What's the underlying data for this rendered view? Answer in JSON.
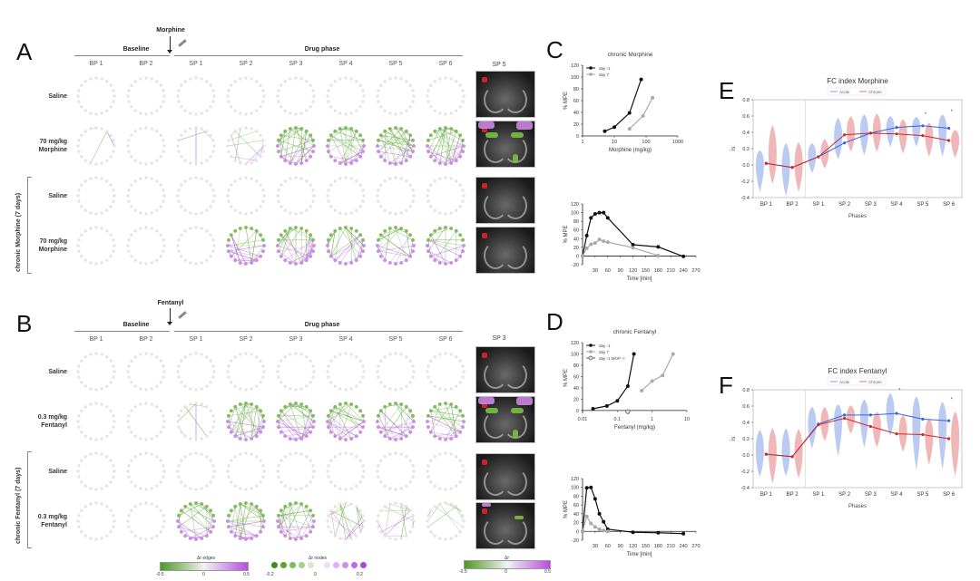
{
  "panels": {
    "A": {
      "letter": "A",
      "drug": "Morphine",
      "baseline_label": "Baseline",
      "drug_phase_label": "Drug phase",
      "columns": [
        "BP 1",
        "BP 2",
        "SP 1",
        "SP 2",
        "SP 3",
        "SP 4",
        "SP 5",
        "SP 6"
      ],
      "rows": [
        {
          "label_line1": "Saline",
          "label_line2": "",
          "intensity": [
            0,
            0,
            0,
            0,
            0,
            0,
            0,
            0
          ]
        },
        {
          "label_line1": "70 mg/kg",
          "label_line2": "Morphine",
          "intensity": [
            0.05,
            0,
            0.05,
            0.25,
            0.9,
            0.95,
            0.95,
            1.0
          ]
        },
        {
          "label_line1": "Saline",
          "label_line2": "",
          "intensity": [
            0,
            0,
            0,
            0,
            0,
            0,
            0,
            0
          ]
        },
        {
          "label_line1": "70 mg/kg",
          "label_line2": "Morphine",
          "intensity": [
            0,
            0,
            0,
            0.7,
            0.85,
            0.75,
            0.7,
            0.55
          ]
        }
      ],
      "group_label": "chronic Morphine (7 days)",
      "brain_title": "SP 5",
      "brain_overlays": [
        "none",
        "activation",
        "none",
        "none"
      ]
    },
    "B": {
      "letter": "B",
      "drug": "Fentanyl",
      "baseline_label": "Baseline",
      "drug_phase_label": "Drug phase",
      "columns": [
        "BP 1",
        "BP 2",
        "SP 1",
        "SP 2",
        "SP 3",
        "SP 4",
        "SP 5",
        "SP 6"
      ],
      "rows": [
        {
          "label_line1": "Saline",
          "label_line2": "",
          "intensity": [
            0,
            0,
            0,
            0,
            0,
            0,
            0,
            0
          ]
        },
        {
          "label_line1": "0.3 mg/kg",
          "label_line2": "Fentanyl",
          "intensity": [
            0,
            0,
            0.1,
            0.95,
            1.0,
            0.85,
            0.7,
            0.65
          ]
        },
        {
          "label_line1": "Saline",
          "label_line2": "",
          "intensity": [
            0,
            0,
            0,
            0,
            0,
            0,
            0,
            0
          ]
        },
        {
          "label_line1": "0.3 mg/kg",
          "label_line2": "Fentanyl",
          "intensity": [
            0,
            0,
            0.7,
            1.0,
            0.8,
            0.45,
            0.35,
            0.25
          ]
        }
      ],
      "group_label": "chronic Fentanyl (7 days)",
      "brain_title": "SP 3",
      "brain_overlays": [
        "none",
        "activation",
        "none",
        "small"
      ]
    }
  },
  "colorbars": {
    "edges": {
      "label": "Δr edges",
      "min": "-0.5",
      "mid": "0",
      "max": "0.5"
    },
    "nodes": {
      "label": "Δr nodes",
      "min": "-0.2",
      "mid": "0",
      "max": "0.2"
    },
    "brain": {
      "label": "Δr",
      "min": "-0.5",
      "mid": "0",
      "max": "0.5"
    },
    "green": "#4a9a20",
    "purple": "#b94be3"
  },
  "chart_data": [
    {
      "id": "C_top",
      "panel": "C",
      "type": "line",
      "title": "chronic Morphine",
      "xlabel": "Morphine (mg/kg)",
      "ylabel": "% MPE",
      "xscale": "log",
      "xlim": [
        1,
        1000
      ],
      "ylim": [
        0,
        120
      ],
      "xticks": [
        "1",
        "10",
        "100",
        "1000"
      ],
      "yticks": [
        "0",
        "20",
        "40",
        "60",
        "80",
        "100",
        "120"
      ],
      "legend": "top-left",
      "series": [
        {
          "name": "day -1",
          "color": "#111111",
          "x": [
            5,
            10,
            30,
            70
          ],
          "y": [
            8,
            15,
            39,
            96
          ]
        },
        {
          "name": "day 7",
          "color": "#aaaaaa",
          "x": [
            30,
            80,
            160
          ],
          "y": [
            12,
            34,
            65
          ]
        }
      ]
    },
    {
      "id": "C_bottom",
      "panel": "C",
      "type": "line",
      "title": "",
      "xlabel": "Time [min]",
      "ylabel": "% MPE",
      "xlim": [
        0,
        270
      ],
      "ylim": [
        -20,
        120
      ],
      "xticks": [
        "30",
        "60",
        "90",
        "120",
        "150",
        "180",
        "210",
        "240",
        "270"
      ],
      "yticks": [
        "-20",
        "0",
        "20",
        "40",
        "60",
        "80",
        "100",
        "120"
      ],
      "series": [
        {
          "name": "day -1",
          "color": "#111111",
          "x": [
            0,
            10,
            20,
            30,
            40,
            50,
            60,
            120,
            180,
            240
          ],
          "y": [
            0,
            47,
            88,
            97,
            100,
            100,
            88,
            26,
            21,
            -1
          ]
        },
        {
          "name": "day 7",
          "color": "#aaaaaa",
          "x": [
            0,
            10,
            20,
            30,
            40,
            50,
            60,
            120,
            180
          ],
          "y": [
            0,
            18,
            27,
            30,
            38,
            34,
            32,
            19,
            1
          ]
        }
      ]
    },
    {
      "id": "D_top",
      "panel": "D",
      "type": "line",
      "title": "chronic Fentanyl",
      "xlabel": "Fentanyl (mg/kg)",
      "ylabel": "% MPE",
      "xscale": "log",
      "xlim": [
        0.01,
        10
      ],
      "ylim": [
        -5,
        120
      ],
      "xticks": [
        "0.01",
        "0.1",
        "1",
        "10"
      ],
      "yticks": [
        "0",
        "20",
        "40",
        "60",
        "80",
        "100",
        "120"
      ],
      "legend": "top-left",
      "series": [
        {
          "name": "day -1",
          "color": "#111111",
          "x": [
            0.02,
            0.05,
            0.1,
            0.2,
            0.3
          ],
          "y": [
            3,
            8,
            17,
            43,
            100
          ]
        },
        {
          "name": "day 7",
          "color": "#aaaaaa",
          "x": [
            0.5,
            1,
            2,
            4
          ],
          "y": [
            35,
            52,
            62,
            100
          ]
        },
        {
          "name": "day -1 MOP -/-",
          "color": "#555555",
          "x": [
            0.2
          ],
          "y": [
            -2
          ],
          "marker": "open"
        }
      ]
    },
    {
      "id": "D_bottom",
      "panel": "D",
      "type": "line",
      "title": "",
      "xlabel": "Time [min]",
      "ylabel": "% MPE",
      "xlim": [
        0,
        270
      ],
      "ylim": [
        -20,
        120
      ],
      "xticks": [
        "30",
        "60",
        "90",
        "120",
        "150",
        "180",
        "210",
        "240",
        "270"
      ],
      "yticks": [
        "-20",
        "0",
        "20",
        "40",
        "60",
        "80",
        "100",
        "120"
      ],
      "series": [
        {
          "name": "day -1",
          "color": "#111111",
          "x": [
            0,
            10,
            20,
            30,
            40,
            50,
            60,
            120,
            180,
            240
          ],
          "y": [
            0,
            99,
            100,
            74,
            40,
            22,
            5,
            -2,
            -3,
            -5
          ]
        },
        {
          "name": "day 7",
          "color": "#aaaaaa",
          "x": [
            0,
            10,
            20,
            30,
            40,
            50,
            60
          ],
          "y": [
            0,
            34,
            18,
            10,
            5,
            2,
            0
          ]
        }
      ]
    },
    {
      "id": "E",
      "panel": "E",
      "type": "line",
      "title": "FC index Morphine",
      "xlabel": "Phases",
      "ylabel": "r̄s",
      "categories": [
        "BP 1",
        "BP 2",
        "SP 1",
        "SP 2",
        "SP 3",
        "SP 4",
        "SP 5",
        "SP 6"
      ],
      "ylim": [
        -0.4,
        0.8
      ],
      "yticks": [
        "-0.4",
        "-0.2",
        "0.0",
        "0.2",
        "0.4",
        "0.6",
        "0.8"
      ],
      "legend": "top-center",
      "series": [
        {
          "name": "Acute",
          "color": "#3a63d8",
          "violin_color": "#a9bdf0",
          "values": [
            0.02,
            -0.03,
            0.1,
            0.27,
            0.39,
            0.46,
            0.48,
            0.45
          ],
          "ranges": [
            [
              -0.33,
              0.18
            ],
            [
              -0.38,
              0.27
            ],
            [
              -0.1,
              0.27
            ],
            [
              0.07,
              0.58
            ],
            [
              0.12,
              0.62
            ],
            [
              0.22,
              0.6
            ],
            [
              0.22,
              0.59
            ],
            [
              0.1,
              0.62
            ]
          ]
        },
        {
          "name": "Chronic",
          "color": "#cc2a2a",
          "violin_color": "#eba5a5",
          "values": [
            0.02,
            -0.03,
            0.1,
            0.37,
            0.39,
            0.38,
            0.36,
            0.3
          ],
          "ranges": [
            [
              -0.23,
              0.49
            ],
            [
              -0.33,
              0.28
            ],
            [
              -0.04,
              0.32
            ],
            [
              0.16,
              0.6
            ],
            [
              0.16,
              0.63
            ],
            [
              0.14,
              0.56
            ],
            [
              0.1,
              0.52
            ],
            [
              0.09,
              0.43
            ]
          ]
        }
      ],
      "significance": [
        "",
        "",
        "",
        "",
        "",
        "",
        "*",
        "*"
      ]
    },
    {
      "id": "F",
      "panel": "F",
      "type": "line",
      "title": "FC index Fentanyl",
      "xlabel": "Phases",
      "ylabel": "r̄s",
      "categories": [
        "BP 1",
        "BP 2",
        "SP 1",
        "SP 2",
        "SP 3",
        "SP 4",
        "SP 5",
        "SP 6"
      ],
      "ylim": [
        -0.4,
        0.8
      ],
      "yticks": [
        "-0.4",
        "-0.2",
        "0.0",
        "0.2",
        "0.4",
        "0.6",
        "0.8"
      ],
      "legend": "top-center",
      "series": [
        {
          "name": "Acute",
          "color": "#3a63d8",
          "violin_color": "#a9bdf0",
          "values": [
            0.01,
            -0.02,
            0.38,
            0.49,
            0.49,
            0.51,
            0.44,
            0.42
          ],
          "ranges": [
            [
              -0.27,
              0.31
            ],
            [
              -0.26,
              0.33
            ],
            [
              0.08,
              0.59
            ],
            [
              -0.02,
              0.62
            ],
            [
              0.09,
              0.68
            ],
            [
              0.23,
              0.76
            ],
            [
              -0.19,
              0.72
            ],
            [
              -0.18,
              0.65
            ]
          ]
        },
        {
          "name": "Chronic",
          "color": "#cc2a2a",
          "violin_color": "#eba5a5",
          "values": [
            0.01,
            -0.02,
            0.37,
            0.45,
            0.35,
            0.26,
            0.25,
            0.2
          ],
          "ranges": [
            [
              -0.35,
              0.33
            ],
            [
              -0.28,
              0.32
            ],
            [
              0.17,
              0.59
            ],
            [
              0.26,
              0.61
            ],
            [
              0.09,
              0.53
            ],
            [
              0.04,
              0.49
            ],
            [
              -0.12,
              0.45
            ],
            [
              -0.26,
              0.53
            ]
          ]
        }
      ],
      "significance": [
        "",
        "",
        "",
        "",
        "",
        "*",
        "",
        "*"
      ]
    }
  ]
}
